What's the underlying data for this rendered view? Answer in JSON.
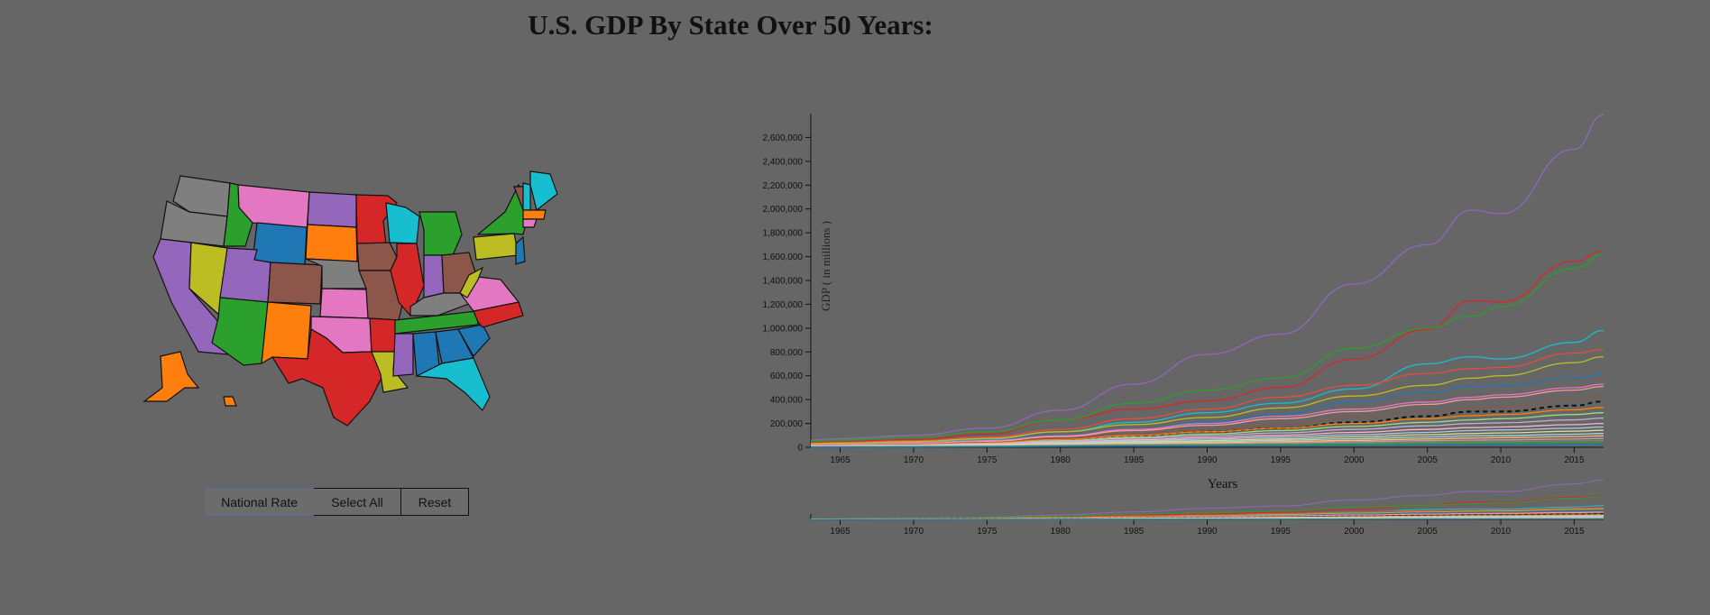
{
  "title": "U.S. GDP By State Over 50 Years:",
  "buttons": {
    "national": "National Rate",
    "select_all": "Select All",
    "reset": "Reset"
  },
  "chart_data": {
    "type": "line",
    "title": "U.S. GDP By State Over 50 Years:",
    "xlabel": "Years",
    "ylabel": "GDP ( in millions )",
    "xlim": [
      1963,
      2017
    ],
    "ylim": [
      0,
      2800000
    ],
    "x_ticks": [
      1965,
      1970,
      1975,
      1980,
      1985,
      1990,
      1995,
      2000,
      2005,
      2010,
      2015
    ],
    "y_ticks": [
      0,
      200000,
      400000,
      600000,
      800000,
      1000000,
      1200000,
      1400000,
      1600000,
      1800000,
      2000000,
      2200000,
      2400000,
      2600000
    ],
    "y_tick_labels": [
      "0",
      "200,000",
      "400,000",
      "600,000",
      "800,000",
      "1,000,000",
      "1,200,000",
      "1,400,000",
      "1,600,000",
      "1,800,000",
      "2,000,000",
      "2,200,000",
      "2,400,000",
      "2,600,000"
    ],
    "x_tick_labels": [
      "1965",
      "1970",
      "1975",
      "1980",
      "1985",
      "1990",
      "1995",
      "2000",
      "2005",
      "2010",
      "2015"
    ],
    "x": [
      1963,
      1965,
      1970,
      1975,
      1980,
      1985,
      1990,
      1995,
      2000,
      2005,
      2008,
      2010,
      2015,
      2017
    ],
    "series": [
      {
        "color": "#9467bd",
        "values": [
          60000,
          72000,
          100000,
          160000,
          310000,
          530000,
          780000,
          950000,
          1370000,
          1700000,
          1990000,
          1960000,
          2500000,
          2790000
        ]
      },
      {
        "color": "#d62728",
        "values": [
          40000,
          45000,
          65000,
          110000,
          230000,
          320000,
          390000,
          500000,
          740000,
          990000,
          1230000,
          1220000,
          1560000,
          1650000
        ]
      },
      {
        "color": "#2ca02c",
        "values": [
          55000,
          62000,
          85000,
          130000,
          230000,
          370000,
          480000,
          580000,
          830000,
          1000000,
          1100000,
          1180000,
          1500000,
          1620000
        ]
      },
      {
        "color": "#17becf",
        "values": [
          25000,
          30000,
          42000,
          70000,
          130000,
          210000,
          290000,
          370000,
          490000,
          700000,
          760000,
          740000,
          880000,
          980000
        ]
      },
      {
        "color": "#e74c3c",
        "values": [
          35000,
          40000,
          55000,
          85000,
          150000,
          240000,
          320000,
          420000,
          520000,
          620000,
          660000,
          670000,
          790000,
          820000
        ]
      },
      {
        "color": "#bcbd22",
        "values": [
          30000,
          35000,
          48000,
          75000,
          130000,
          190000,
          250000,
          330000,
          430000,
          520000,
          580000,
          600000,
          710000,
          760000
        ]
      },
      {
        "color": "#1f77b4",
        "values": [
          20000,
          25000,
          35000,
          55000,
          100000,
          150000,
          210000,
          280000,
          380000,
          460000,
          510000,
          520000,
          580000,
          610000
        ]
      },
      {
        "color": "#e377c2",
        "values": [
          22000,
          26000,
          36000,
          56000,
          95000,
          150000,
          200000,
          260000,
          320000,
          380000,
          420000,
          440000,
          500000,
          530000
        ]
      },
      {
        "color": "#ff9896",
        "values": [
          18000,
          22000,
          30000,
          50000,
          90000,
          140000,
          185000,
          240000,
          300000,
          360000,
          400000,
          420000,
          480000,
          510000
        ]
      },
      {
        "color": "#8c564b",
        "values": [
          15000,
          18000,
          25000,
          40000,
          75000,
          115000,
          150000,
          190000,
          250000,
          300000,
          330000,
          345000,
          400000,
          430000
        ]
      },
      {
        "color": "#111111",
        "dashed": true,
        "values": [
          10000,
          12000,
          20000,
          35000,
          60000,
          95000,
          130000,
          160000,
          210000,
          260000,
          300000,
          300000,
          350000,
          385000
        ]
      },
      {
        "color": "#ff7f0e",
        "values": [
          14000,
          17000,
          23000,
          37000,
          65000,
          100000,
          130000,
          160000,
          200000,
          240000,
          265000,
          275000,
          315000,
          335000
        ]
      },
      {
        "color": "#98df8a",
        "values": [
          12000,
          15000,
          20000,
          32000,
          55000,
          85000,
          110000,
          140000,
          175000,
          210000,
          230000,
          240000,
          275000,
          290000
        ]
      },
      {
        "color": "#c5b0d5",
        "values": [
          11000,
          13000,
          18000,
          29000,
          50000,
          75000,
          95000,
          120000,
          150000,
          180000,
          200000,
          205000,
          230000,
          245000
        ]
      },
      {
        "color": "#f7b6d2",
        "values": [
          9000,
          11000,
          15000,
          25000,
          42000,
          62000,
          80000,
          100000,
          125000,
          150000,
          165000,
          170000,
          190000,
          200000
        ]
      },
      {
        "color": "#aec7e8",
        "values": [
          8000,
          10000,
          13000,
          21000,
          36000,
          52000,
          68000,
          85000,
          105000,
          125000,
          140000,
          145000,
          160000,
          170000
        ]
      },
      {
        "color": "#dbdb8d",
        "values": [
          7000,
          8500,
          11000,
          18000,
          30000,
          44000,
          56000,
          70000,
          88000,
          105000,
          115000,
          120000,
          135000,
          142000
        ]
      },
      {
        "color": "#9edae5",
        "values": [
          6000,
          7000,
          9500,
          15000,
          25000,
          36000,
          46000,
          58000,
          72000,
          86000,
          95000,
          98000,
          110000,
          116000
        ]
      },
      {
        "color": "#ffbb78",
        "values": [
          5000,
          6000,
          8000,
          12500,
          21000,
          30000,
          38000,
          47000,
          58000,
          70000,
          77000,
          80000,
          90000,
          95000
        ]
      },
      {
        "color": "#c49c94",
        "values": [
          4000,
          4800,
          6500,
          10000,
          17000,
          24000,
          30000,
          37000,
          46000,
          55000,
          60000,
          62000,
          70000,
          74000
        ]
      },
      {
        "color": "#7f7f7f",
        "values": [
          3000,
          3600,
          5000,
          8000,
          13000,
          18000,
          23000,
          28000,
          35000,
          42000,
          46000,
          48000,
          54000,
          57000
        ]
      },
      {
        "color": "#2ca02c",
        "values": [
          2500,
          3000,
          4000,
          6500,
          10500,
          14500,
          18000,
          22000,
          27000,
          32000,
          35000,
          36000,
          40000,
          42000
        ]
      },
      {
        "color": "#1f77b4",
        "values": [
          1500,
          1800,
          2500,
          4000,
          6500,
          9000,
          11000,
          14000,
          17000,
          20000,
          22000,
          23000,
          26000,
          27000
        ]
      }
    ]
  },
  "map": {
    "states": [
      {
        "name": "WA",
        "color": "#7f7f7f"
      },
      {
        "name": "OR",
        "color": "#7f7f7f"
      },
      {
        "name": "CA",
        "color": "#9467bd"
      },
      {
        "name": "NV",
        "color": "#bcbd22"
      },
      {
        "name": "ID",
        "color": "#2ca02c"
      },
      {
        "name": "MT",
        "color": "#e377c2"
      },
      {
        "name": "WY",
        "color": "#1f77b4"
      },
      {
        "name": "UT",
        "color": "#9467bd"
      },
      {
        "name": "AZ",
        "color": "#2ca02c"
      },
      {
        "name": "CO",
        "color": "#8c564b"
      },
      {
        "name": "NM",
        "color": "#ff7f0e"
      },
      {
        "name": "ND",
        "color": "#9467bd"
      },
      {
        "name": "SD",
        "color": "#ff7f0e"
      },
      {
        "name": "NE",
        "color": "#7f7f7f"
      },
      {
        "name": "KS",
        "color": "#e377c2"
      },
      {
        "name": "OK",
        "color": "#e377c2"
      },
      {
        "name": "TX",
        "color": "#d62728"
      },
      {
        "name": "MN",
        "color": "#d62728"
      },
      {
        "name": "IA",
        "color": "#8c564b"
      },
      {
        "name": "MO",
        "color": "#8c564b"
      },
      {
        "name": "AR",
        "color": "#d62728"
      },
      {
        "name": "LA",
        "color": "#bcbd22"
      },
      {
        "name": "WI",
        "color": "#17becf"
      },
      {
        "name": "IL",
        "color": "#d62728"
      },
      {
        "name": "MI",
        "color": "#2ca02c"
      },
      {
        "name": "IN",
        "color": "#9467bd"
      },
      {
        "name": "OH",
        "color": "#8c564b"
      },
      {
        "name": "KY",
        "color": "#7f7f7f"
      },
      {
        "name": "TN",
        "color": "#2ca02c"
      },
      {
        "name": "MS",
        "color": "#9467bd"
      },
      {
        "name": "AL",
        "color": "#1f77b4"
      },
      {
        "name": "GA",
        "color": "#1f77b4"
      },
      {
        "name": "FL",
        "color": "#17becf"
      },
      {
        "name": "SC",
        "color": "#1f77b4"
      },
      {
        "name": "NC",
        "color": "#d62728"
      },
      {
        "name": "VA",
        "color": "#e377c2"
      },
      {
        "name": "WV",
        "color": "#bcbd22"
      },
      {
        "name": "PA",
        "color": "#bcbd22"
      },
      {
        "name": "NY",
        "color": "#2ca02c"
      },
      {
        "name": "VT",
        "color": "#8c564b"
      },
      {
        "name": "NH",
        "color": "#17becf"
      },
      {
        "name": "ME",
        "color": "#17becf"
      },
      {
        "name": "MA",
        "color": "#ff7f0e"
      },
      {
        "name": "CT",
        "color": "#e377c2"
      },
      {
        "name": "NJ",
        "color": "#1f77b4"
      },
      {
        "name": "AK",
        "color": "#ff7f0e"
      },
      {
        "name": "HI",
        "color": "#ff7f0e"
      }
    ]
  }
}
